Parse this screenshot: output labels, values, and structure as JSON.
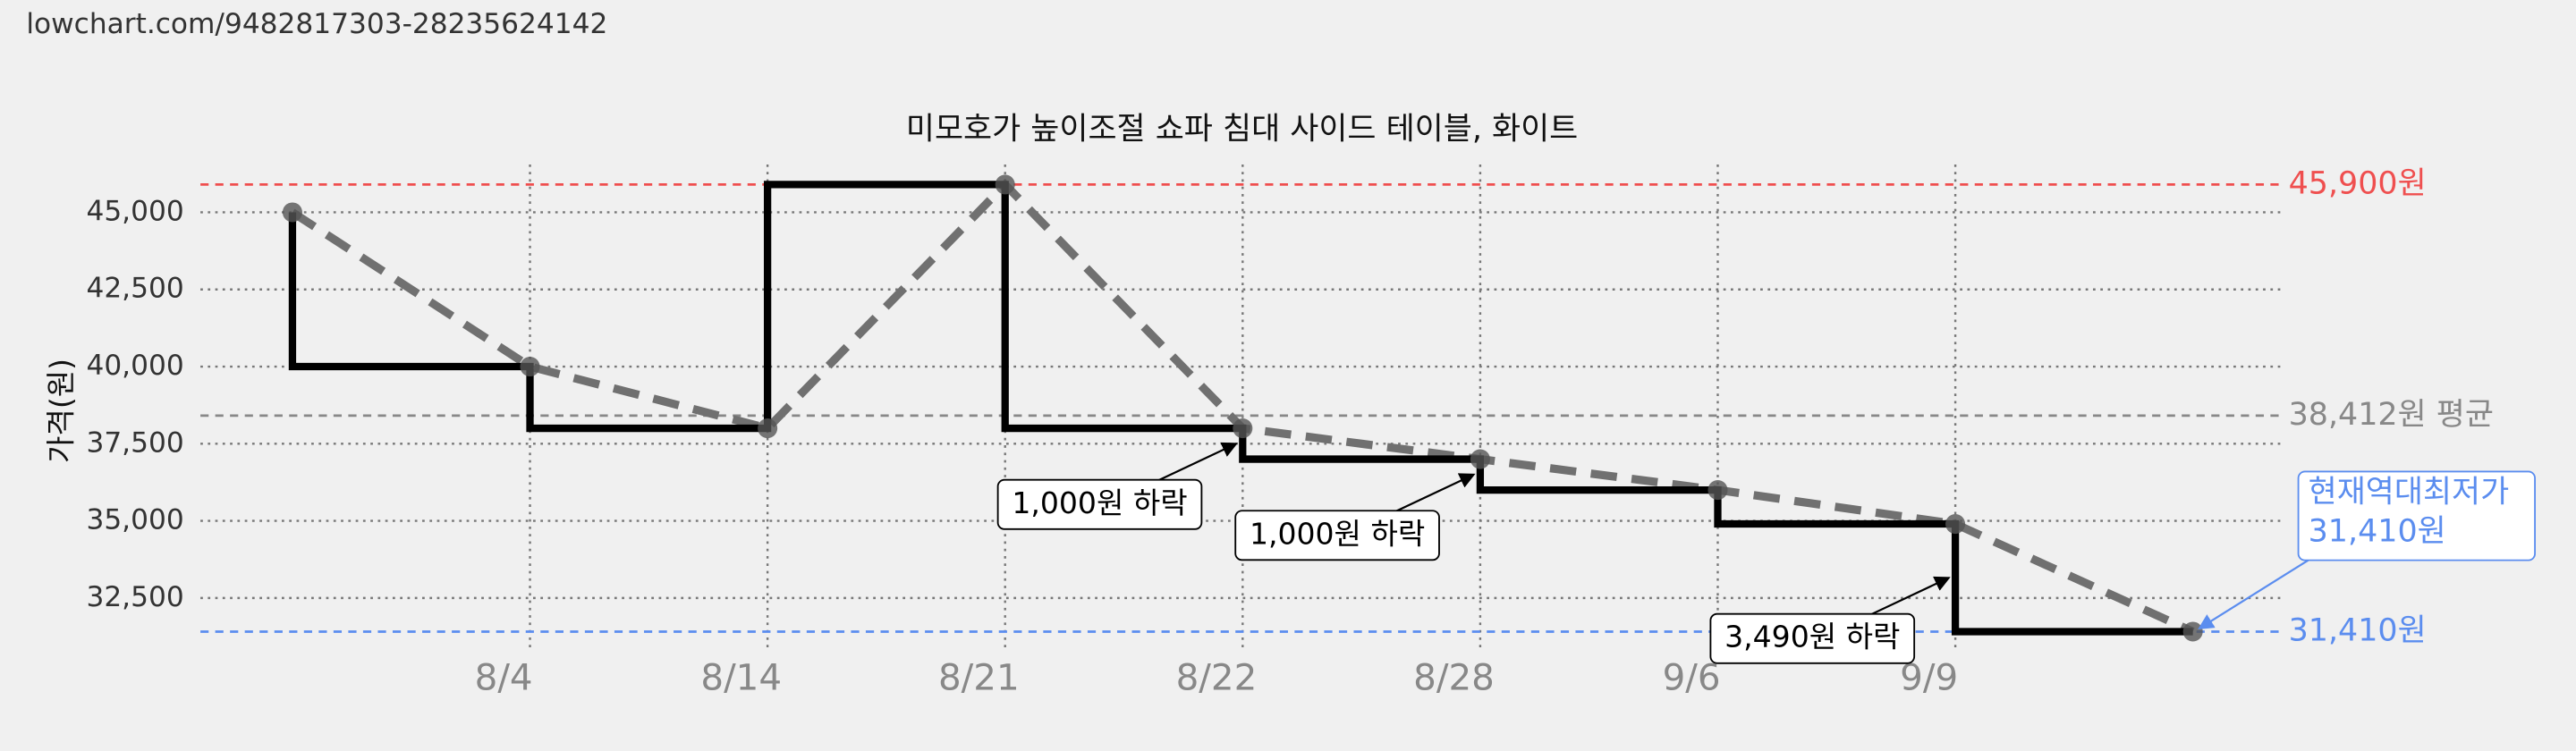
{
  "url": "lowchart.com/9482817303-28235624142",
  "chart_data": {
    "type": "step",
    "title": "미모호가 높이조절 쇼파 침대 사이드 테이블, 화이트",
    "y_label": "가격(원)",
    "categories": [
      null,
      "8/4",
      "8/14",
      "8/21",
      "8/22",
      "8/28",
      "9/6",
      "9/9",
      null
    ],
    "values": [
      45000,
      40000,
      38000,
      45900,
      38000,
      37000,
      36000,
      34900,
      31410
    ],
    "color": "#000000",
    "trend_color": "#707070",
    "ylim": [
      30850,
      46550
    ],
    "yticks": [
      {
        "value": 32500,
        "label": "32,500"
      },
      {
        "value": 35000,
        "label": "35,000"
      },
      {
        "value": 37500,
        "label": "37,500"
      },
      {
        "value": 40000,
        "label": "40,000"
      },
      {
        "value": 42500,
        "label": "42,500"
      },
      {
        "value": 45000,
        "label": "45,000"
      }
    ],
    "grid": true,
    "reference_lines": [
      {
        "value": 45900,
        "label": "45,900원",
        "color": "#ef4f4f"
      },
      {
        "value": 38412,
        "label": "38,412원 평균",
        "color": "#888888"
      },
      {
        "value": 31410,
        "label": "31,410원",
        "color": "#5b8def"
      }
    ],
    "annotations": [
      {
        "category": "8/22",
        "text": "1,000원 하락"
      },
      {
        "category": "8/28",
        "text": "1,000원 하락"
      },
      {
        "category": "9/9",
        "text": "3,490원 하락"
      }
    ],
    "callout": [
      "현재역대최저가",
      "31,410원"
    ]
  }
}
